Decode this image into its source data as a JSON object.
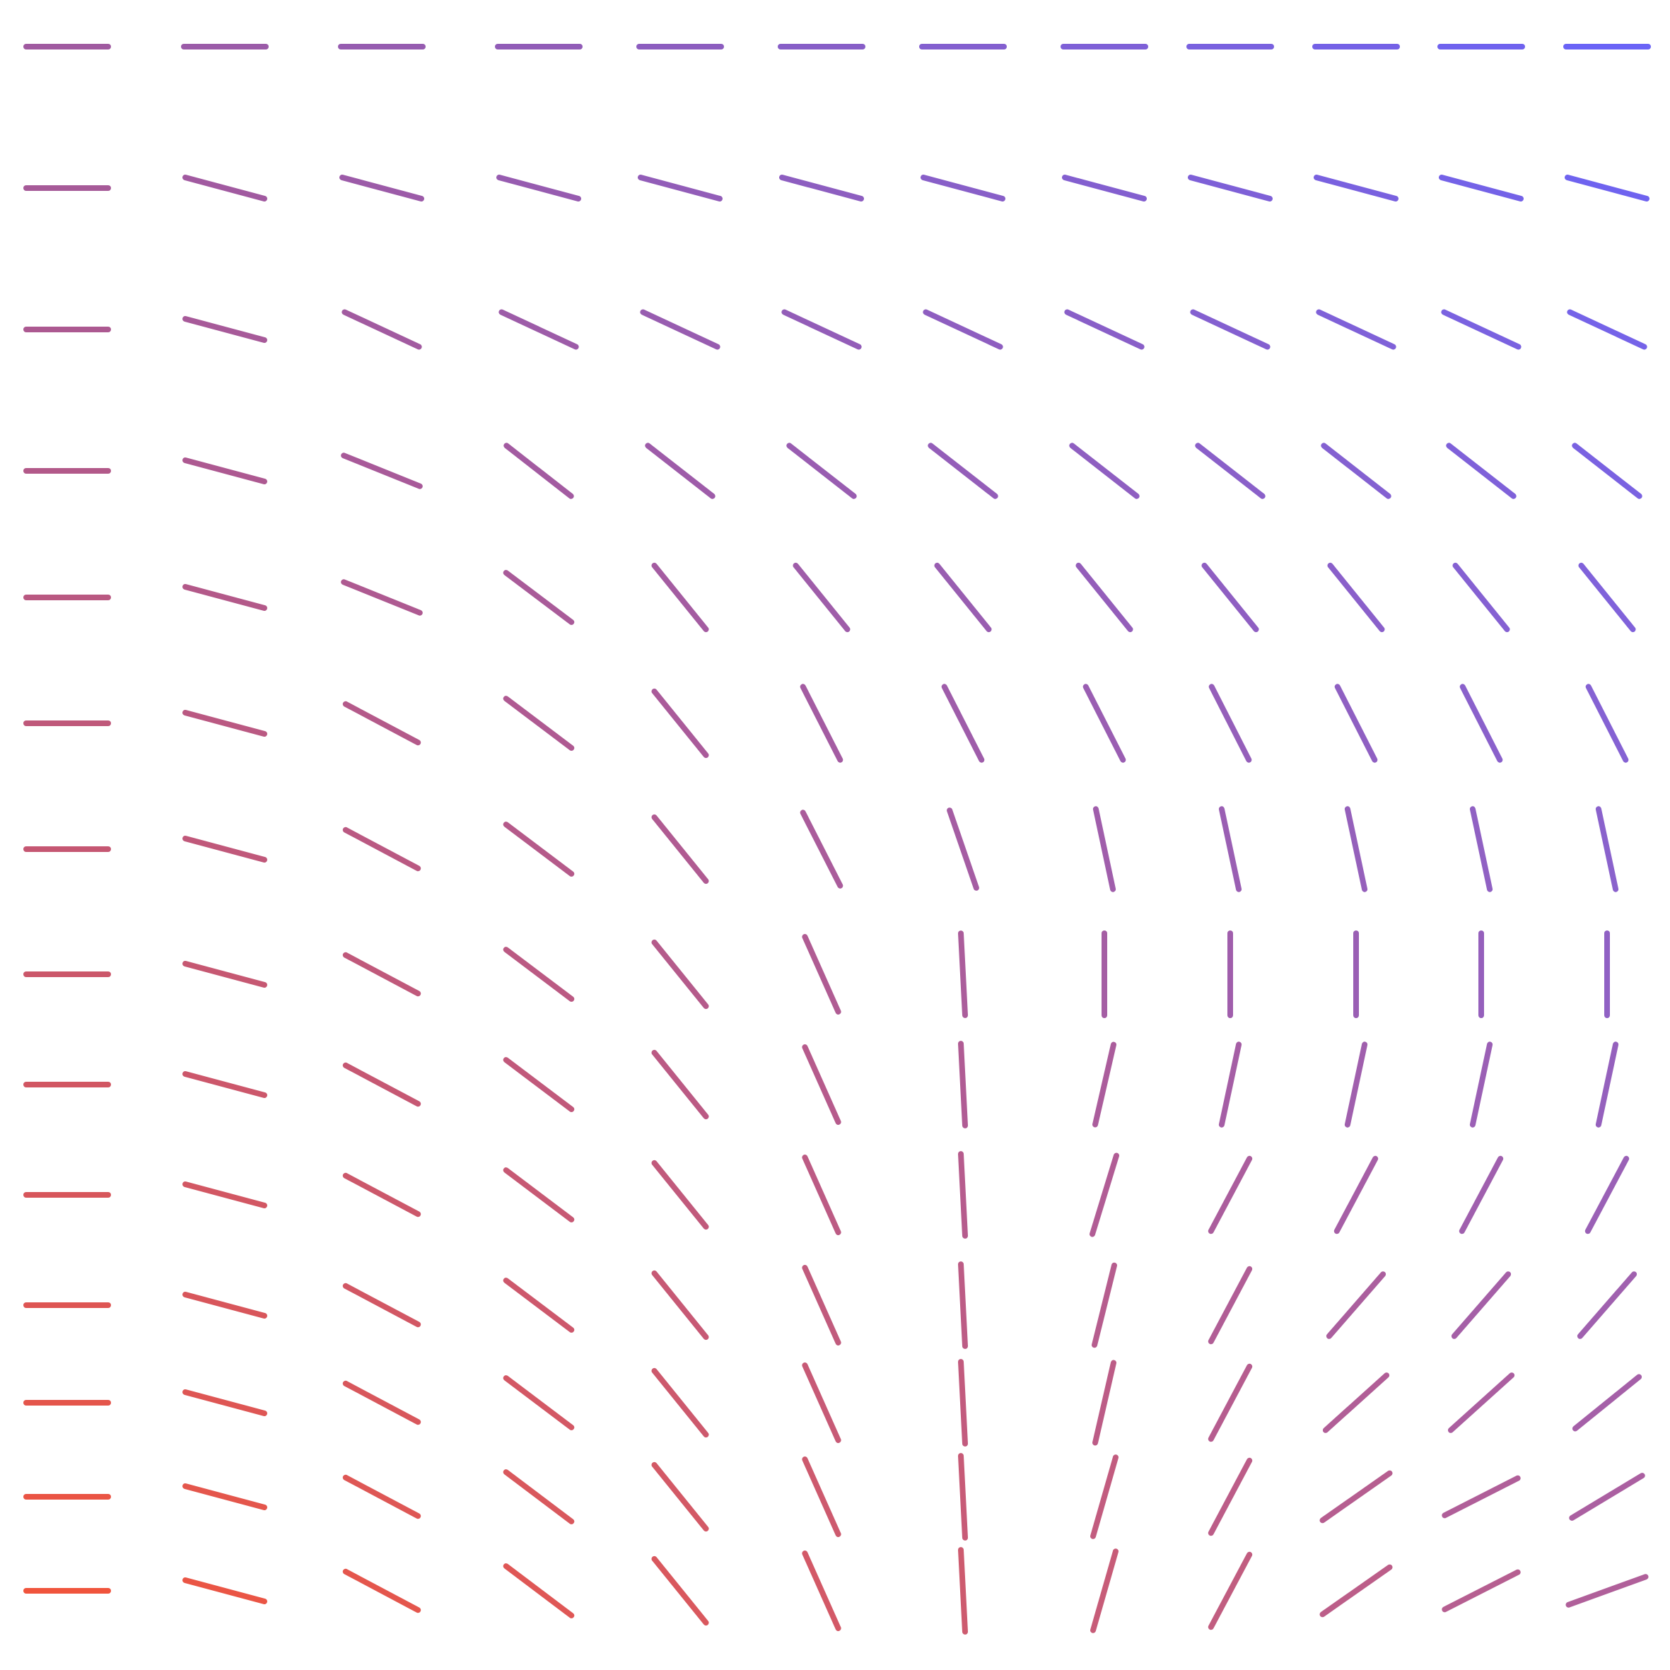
{
  "diagram": {
    "kind": "direction-field",
    "rows": 14,
    "cols": 12,
    "colors": {
      "top_right": "#6a63f6",
      "top_left": "#a05aa0",
      "bottom_left": "#f0543c",
      "bottom_right": "#b0609a"
    },
    "angles_deg": [
      [
        0,
        0,
        0,
        0,
        0,
        0,
        0,
        0,
        0,
        0,
        0,
        0
      ],
      [
        0,
        15,
        15,
        15,
        15,
        15,
        15,
        15,
        15,
        15,
        15,
        15
      ],
      [
        0,
        15,
        25,
        25,
        25,
        25,
        25,
        25,
        25,
        25,
        25,
        25
      ],
      [
        0,
        15,
        22,
        38,
        38,
        38,
        38,
        38,
        38,
        38,
        38,
        38
      ],
      [
        0,
        15,
        22,
        37,
        51,
        51,
        51,
        51,
        51,
        51,
        51,
        51
      ],
      [
        0,
        15,
        28,
        37,
        51,
        63,
        63,
        63,
        63,
        63,
        63,
        63
      ],
      [
        0,
        15,
        28,
        37,
        51,
        63,
        71,
        78,
        78,
        78,
        78,
        78
      ],
      [
        0,
        15,
        28,
        37,
        51,
        66,
        87,
        90,
        90,
        90,
        90,
        90
      ],
      [
        0,
        15,
        28,
        37,
        51,
        66,
        87,
        103,
        102,
        102,
        102,
        102
      ],
      [
        0,
        15,
        28,
        37,
        51,
        66,
        87,
        107,
        118,
        118,
        118,
        118
      ],
      [
        0,
        15,
        28,
        37,
        51,
        66,
        87,
        104,
        118,
        131,
        131,
        131
      ],
      [
        0,
        15,
        28,
        37,
        51,
        66,
        87,
        103,
        118,
        138,
        138,
        141
      ],
      [
        0,
        15,
        28,
        37,
        51,
        66,
        87,
        106,
        118,
        145,
        153,
        149
      ],
      [
        0,
        15,
        28,
        37,
        51,
        66,
        87,
        106,
        118,
        145,
        153,
        160
      ]
    ]
  }
}
